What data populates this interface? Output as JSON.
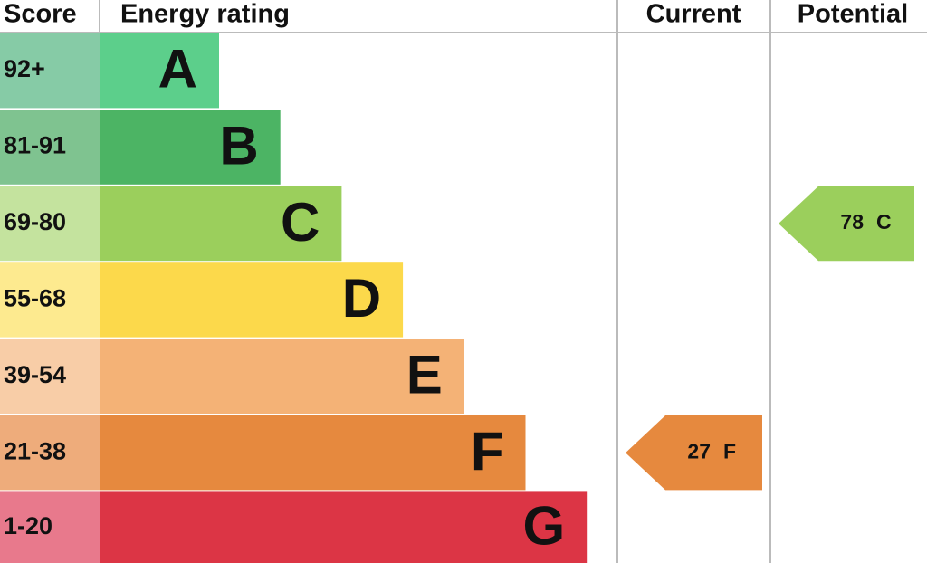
{
  "header": {
    "score": "Score",
    "rating": "Energy rating",
    "current": "Current",
    "potential": "Potential"
  },
  "bands": [
    {
      "range": "92+",
      "letter": "A",
      "color": "#5ccf8b",
      "score_color": "#86cba6"
    },
    {
      "range": "81-91",
      "letter": "B",
      "color": "#4cb464",
      "score_color": "#7fc390"
    },
    {
      "range": "69-80",
      "letter": "C",
      "color": "#9bcf5c",
      "score_color": "#c4e39e"
    },
    {
      "range": "55-68",
      "letter": "D",
      "color": "#fcd94b",
      "score_color": "#fdea8f"
    },
    {
      "range": "39-54",
      "letter": "E",
      "color": "#f4b276",
      "score_color": "#f8cda7"
    },
    {
      "range": "21-38",
      "letter": "F",
      "color": "#e6893e",
      "score_color": "#eeac7b"
    },
    {
      "range": "1-20",
      "letter": "G",
      "color": "#dc3545",
      "score_color": "#e8798c"
    }
  ],
  "current": {
    "score": 27,
    "band": "F"
  },
  "potential": {
    "score": 78,
    "band": "C"
  }
}
